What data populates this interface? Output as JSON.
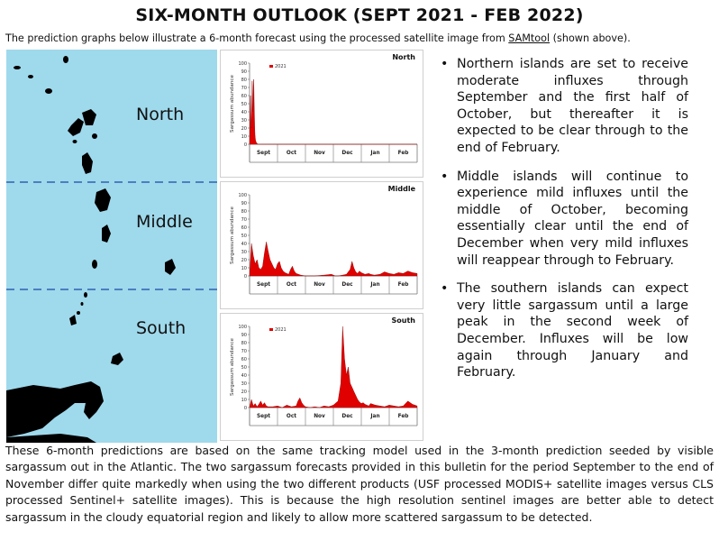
{
  "title": "SIX-MONTH OUTLOOK (SEPT 2021 - FEB 2022)",
  "intro": {
    "before": "The prediction graphs below illustrate a 6-month forecast using the processed satellite image from ",
    "link": "SAMtool",
    "after": " (shown above)."
  },
  "map": {
    "labels": [
      "North",
      "Middle",
      "South"
    ],
    "water_color": "#9fd9ec",
    "divider_color": "#4a7fc0"
  },
  "chart_data": [
    {
      "type": "area",
      "title": "North",
      "ylabel": "Sargassum abundance",
      "xlabel": "",
      "x_ticks": [
        "Sept",
        "Oct",
        "Nov",
        "Dec",
        "Jan",
        "Feb"
      ],
      "y_ticks": [
        "0",
        "10",
        "20",
        "30",
        "40",
        "50",
        "60",
        "70",
        "80",
        "90",
        "100"
      ],
      "ylim": [
        0,
        100
      ],
      "legend": "2021",
      "legend_position": "top-left",
      "series": [
        {
          "name": "2021",
          "x": [
            0,
            0.1,
            0.3,
            0.5,
            0.6,
            0.8,
            1.0,
            1.2,
            1.4,
            1.6,
            1.8,
            2.0,
            2.3,
            2.6,
            2.8,
            3.0,
            3.3,
            3.6,
            3.8,
            4.0,
            4.3,
            4.6,
            4.9,
            5.2,
            5.5,
            5.8,
            6.1,
            6.4,
            6.7,
            7.0,
            7.4,
            8,
            9,
            10,
            12,
            14,
            18,
            24,
            30,
            36,
            42,
            48,
            54,
            60,
            66,
            72,
            78,
            84,
            90,
            96,
            102,
            108,
            114,
            120,
            126,
            132,
            138,
            144,
            150,
            156,
            162,
            168,
            174,
            180
          ],
          "values": [
            0,
            5,
            15,
            30,
            40,
            50,
            60,
            55,
            45,
            30,
            20,
            22,
            35,
            62,
            78,
            68,
            50,
            40,
            55,
            72,
            80,
            70,
            50,
            35,
            20,
            12,
            8,
            5,
            4,
            3,
            2,
            1,
            0,
            0,
            0,
            0,
            0,
            0,
            0,
            0,
            0,
            0,
            0,
            0,
            0,
            0,
            0,
            0,
            0,
            0,
            0,
            0,
            0,
            0,
            0,
            0,
            0,
            0,
            0,
            0,
            0,
            0,
            0,
            0
          ]
        }
      ]
    },
    {
      "type": "area",
      "title": "Middle",
      "ylabel": "Sargassum abundance",
      "xlabel": "",
      "x_ticks": [
        "Sept",
        "Oct",
        "Nov",
        "Dec",
        "Jan",
        "Feb"
      ],
      "y_ticks": [
        "0",
        "10",
        "20",
        "30",
        "40",
        "50",
        "60",
        "70",
        "80",
        "90",
        "100"
      ],
      "ylim": [
        0,
        100
      ],
      "legend": "",
      "series": [
        {
          "name": "",
          "x": [
            0,
            2,
            4,
            6,
            8,
            10,
            12,
            14,
            16,
            18,
            20,
            22,
            24,
            26,
            28,
            30,
            32,
            34,
            36,
            38,
            40,
            42,
            44,
            46,
            48,
            50,
            55,
            60,
            70,
            80,
            88,
            90,
            92,
            95,
            100,
            104,
            108,
            110,
            112,
            114,
            116,
            118,
            120,
            124,
            128,
            130,
            134,
            140,
            145,
            150,
            155,
            160,
            165,
            170,
            175,
            180
          ],
          "values": [
            0,
            40,
            25,
            15,
            20,
            10,
            8,
            12,
            28,
            42,
            30,
            20,
            15,
            10,
            8,
            15,
            18,
            10,
            6,
            4,
            3,
            2,
            8,
            12,
            6,
            3,
            1,
            0,
            0,
            1,
            2,
            1,
            0,
            0,
            1,
            2,
            8,
            18,
            10,
            5,
            3,
            6,
            4,
            2,
            3,
            2,
            1,
            2,
            5,
            3,
            2,
            4,
            3,
            6,
            4,
            3
          ]
        }
      ]
    },
    {
      "type": "area",
      "title": "South",
      "ylabel": "Sargassum abundance",
      "xlabel": "",
      "x_ticks": [
        "Sept",
        "Oct",
        "Nov",
        "Dec",
        "Jan",
        "Feb"
      ],
      "y_ticks": [
        "0",
        "10",
        "20",
        "30",
        "40",
        "50",
        "60",
        "70",
        "80",
        "90",
        "100"
      ],
      "ylim": [
        0,
        100
      ],
      "legend": "2021",
      "legend_position": "top-left",
      "series": [
        {
          "name": "2021",
          "x": [
            0,
            2,
            4,
            6,
            8,
            10,
            12,
            14,
            16,
            18,
            20,
            25,
            30,
            35,
            40,
            45,
            50,
            52,
            54,
            56,
            58,
            60,
            65,
            70,
            75,
            80,
            85,
            90,
            95,
            98,
            100,
            102,
            104,
            106,
            108,
            110,
            112,
            114,
            116,
            118,
            120,
            122,
            124,
            126,
            128,
            130,
            135,
            140,
            145,
            150,
            155,
            160,
            165,
            170,
            175,
            180
          ],
          "values": [
            0,
            10,
            2,
            5,
            1,
            4,
            8,
            3,
            6,
            2,
            1,
            1,
            2,
            0,
            3,
            1,
            2,
            8,
            12,
            6,
            3,
            1,
            0,
            1,
            0,
            2,
            1,
            3,
            8,
            30,
            100,
            60,
            40,
            50,
            30,
            25,
            20,
            15,
            10,
            7,
            5,
            6,
            4,
            3,
            2,
            5,
            3,
            2,
            1,
            3,
            2,
            1,
            2,
            8,
            4,
            2
          ]
        }
      ]
    }
  ],
  "bullets": [
    "Northern islands are set to receive moderate influxes through September and the first half of October, but thereafter it is expected to be clear through to the end of February.",
    "Middle islands will continue to experience mild influxes until the middle of October, becoming essentially clear until the end of December when very mild influxes will reappear through to February.",
    "The southern islands can expect very little sargassum until a large peak in the second week of December. Influxes will be low again through January and February."
  ],
  "footer": "These 6-month predictions are based on the same tracking model used in the 3-month prediction seeded by visible sargassum out in the Atlantic. The two sargassum forecasts provided in this bulletin for the period September to the end of November differ quite markedly when using the two different products (USF processed MODIS+ satellite images versus CLS processed Sentinel+ satellite images). This is because the high resolution sentinel images are better able to detect sargassum in the cloudy equatorial region and likely to allow more scattered sargassum to be detected.",
  "colors": {
    "series": "#e00000",
    "axis": "#777777",
    "land": "#000000"
  }
}
